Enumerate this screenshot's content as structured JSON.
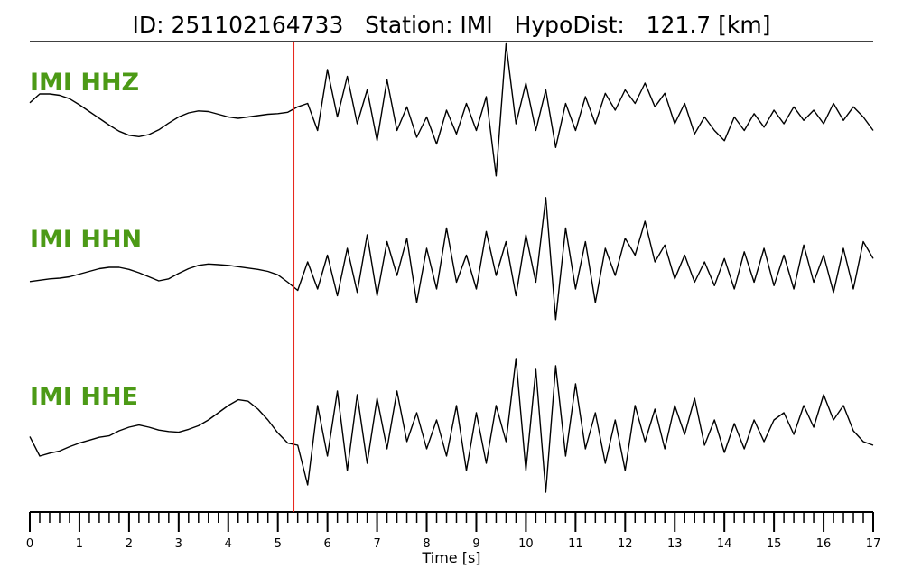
{
  "chart_data": {
    "type": "line",
    "title": "ID: 251102164733   Station: IMI   HypoDist:   121.7 [km]",
    "xlabel": "Time [s]",
    "xlim": [
      0,
      17
    ],
    "xticks": [
      0,
      1,
      2,
      3,
      4,
      5,
      6,
      7,
      8,
      9,
      10,
      11,
      12,
      13,
      14,
      15,
      16,
      17
    ],
    "xminor_ticks": [
      0,
      0.2,
      0.4,
      0.6,
      0.8,
      1,
      1.2,
      1.4,
      1.6,
      1.8,
      2,
      2.2,
      2.4,
      2.6,
      2.8,
      3,
      3.2,
      3.4,
      3.6,
      3.8,
      4,
      4.2,
      4.4,
      4.6,
      4.8,
      5,
      5.2,
      5.4,
      5.6,
      5.8,
      6,
      6.2,
      6.4,
      6.6,
      6.8,
      7,
      7.2,
      7.4,
      7.6,
      7.8,
      8,
      8.2,
      8.4,
      8.6,
      8.8,
      9,
      9.2,
      9.4,
      9.6,
      9.8,
      10,
      10.2,
      10.4,
      10.6,
      10.8,
      11,
      11.2,
      11.4,
      11.6,
      11.8,
      12,
      12.2,
      12.4,
      12.6,
      12.8,
      13,
      13.2,
      13.4,
      13.6,
      13.8,
      14,
      14.2,
      14.4,
      14.6,
      14.8,
      15,
      15.2,
      15.4,
      15.6,
      15.8,
      16,
      16.2,
      16.4,
      16.6,
      16.8,
      17
    ],
    "pick_time": 5.32,
    "pick_color": "#e8281e",
    "label_color": "#4c9a16",
    "x": [
      0,
      0.2,
      0.4,
      0.6,
      0.8,
      1,
      1.2,
      1.4,
      1.6,
      1.8,
      2,
      2.2,
      2.4,
      2.6,
      2.8,
      3,
      3.2,
      3.4,
      3.6,
      3.8,
      4,
      4.2,
      4.4,
      4.6,
      4.8,
      5,
      5.2,
      5.4,
      5.6,
      5.8,
      6,
      6.2,
      6.4,
      6.6,
      6.8,
      7,
      7.2,
      7.4,
      7.6,
      7.8,
      8,
      8.2,
      8.4,
      8.6,
      8.8,
      9,
      9.2,
      9.4,
      9.6,
      9.8,
      10,
      10.2,
      10.4,
      10.6,
      10.8,
      11,
      11.2,
      11.4,
      11.6,
      11.8,
      12,
      12.2,
      12.4,
      12.6,
      12.8,
      13,
      13.2,
      13.4,
      13.6,
      13.8,
      14,
      14.2,
      14.4,
      14.6,
      14.8,
      15,
      15.2,
      15.4,
      15.6,
      15.8,
      16,
      16.2,
      16.4,
      16.6,
      16.8,
      17
    ],
    "series": [
      {
        "name": "IMI HHZ",
        "color": "#000000",
        "values": [
          0.11,
          0.24,
          0.24,
          0.22,
          0.17,
          0.08,
          -0.02,
          -0.12,
          -0.22,
          -0.31,
          -0.37,
          -0.39,
          -0.36,
          -0.29,
          -0.19,
          -0.1,
          -0.04,
          -0.01,
          -0.02,
          -0.06,
          -0.1,
          -0.12,
          -0.1,
          -0.08,
          -0.06,
          -0.05,
          -0.03,
          0.05,
          0.1,
          -0.3,
          0.6,
          -0.1,
          0.5,
          -0.2,
          0.3,
          -0.45,
          0.45,
          -0.3,
          0.05,
          -0.4,
          -0.1,
          -0.5,
          0,
          -0.35,
          0.1,
          -0.3,
          0.2,
          -0.97,
          0.98,
          -0.2,
          0.4,
          -0.3,
          0.3,
          -0.55,
          0.1,
          -0.3,
          0.2,
          -0.2,
          0.25,
          0,
          0.3,
          0.1,
          0.4,
          0.05,
          0.25,
          -0.2,
          0.1,
          -0.35,
          -0.1,
          -0.3,
          -0.45,
          -0.1,
          -0.3,
          -0.05,
          -0.25,
          0,
          -0.2,
          0.05,
          -0.15,
          0,
          -0.2,
          0.1,
          -0.15,
          0.05,
          -0.1,
          -0.3
        ]
      },
      {
        "name": "IMI HHN",
        "color": "#000000",
        "values": [
          -0.29,
          -0.27,
          -0.25,
          -0.24,
          -0.22,
          -0.18,
          -0.14,
          -0.1,
          -0.08,
          -0.08,
          -0.11,
          -0.16,
          -0.22,
          -0.28,
          -0.25,
          -0.17,
          -0.1,
          -0.05,
          -0.03,
          -0.04,
          -0.05,
          -0.07,
          -0.09,
          -0.11,
          -0.14,
          -0.19,
          -0.3,
          -0.42,
          0,
          -0.4,
          0.1,
          -0.5,
          0.2,
          -0.45,
          0.4,
          -0.5,
          0.3,
          -0.2,
          0.35,
          -0.6,
          0.2,
          -0.4,
          0.5,
          -0.3,
          0.1,
          -0.4,
          0.45,
          -0.2,
          0.3,
          -0.5,
          0.4,
          -0.3,
          0.95,
          -0.85,
          0.5,
          -0.4,
          0.3,
          -0.6,
          0.2,
          -0.2,
          0.35,
          0.1,
          0.6,
          0,
          0.25,
          -0.25,
          0.1,
          -0.3,
          0,
          -0.35,
          0.05,
          -0.4,
          0.15,
          -0.3,
          0.2,
          -0.35,
          0.1,
          -0.4,
          0.25,
          -0.3,
          0.1,
          -0.45,
          0.2,
          -0.4,
          0.3,
          0.05
        ]
      },
      {
        "name": "IMI HHE",
        "color": "#000000",
        "values": [
          -0.13,
          -0.4,
          -0.36,
          -0.33,
          -0.27,
          -0.22,
          -0.18,
          -0.14,
          -0.12,
          -0.05,
          0,
          0.03,
          0,
          -0.04,
          -0.06,
          -0.07,
          -0.03,
          0.02,
          0.1,
          0.2,
          0.3,
          0.38,
          0.36,
          0.25,
          0.1,
          -0.08,
          -0.22,
          -0.25,
          -0.8,
          0.3,
          -0.4,
          0.5,
          -0.6,
          0.45,
          -0.5,
          0.4,
          -0.3,
          0.5,
          -0.2,
          0.2,
          -0.3,
          0.1,
          -0.4,
          0.3,
          -0.6,
          0.2,
          -0.5,
          0.3,
          -0.2,
          0.95,
          -0.6,
          0.8,
          -0.9,
          0.85,
          -0.4,
          0.6,
          -0.3,
          0.2,
          -0.5,
          0.1,
          -0.6,
          0.3,
          -0.2,
          0.25,
          -0.3,
          0.3,
          -0.1,
          0.4,
          -0.25,
          0.1,
          -0.35,
          0.05,
          -0.3,
          0.1,
          -0.2,
          0.1,
          0.2,
          -0.1,
          0.3,
          0,
          0.45,
          0.1,
          0.3,
          -0.05,
          -0.2,
          -0.25
        ]
      }
    ]
  }
}
